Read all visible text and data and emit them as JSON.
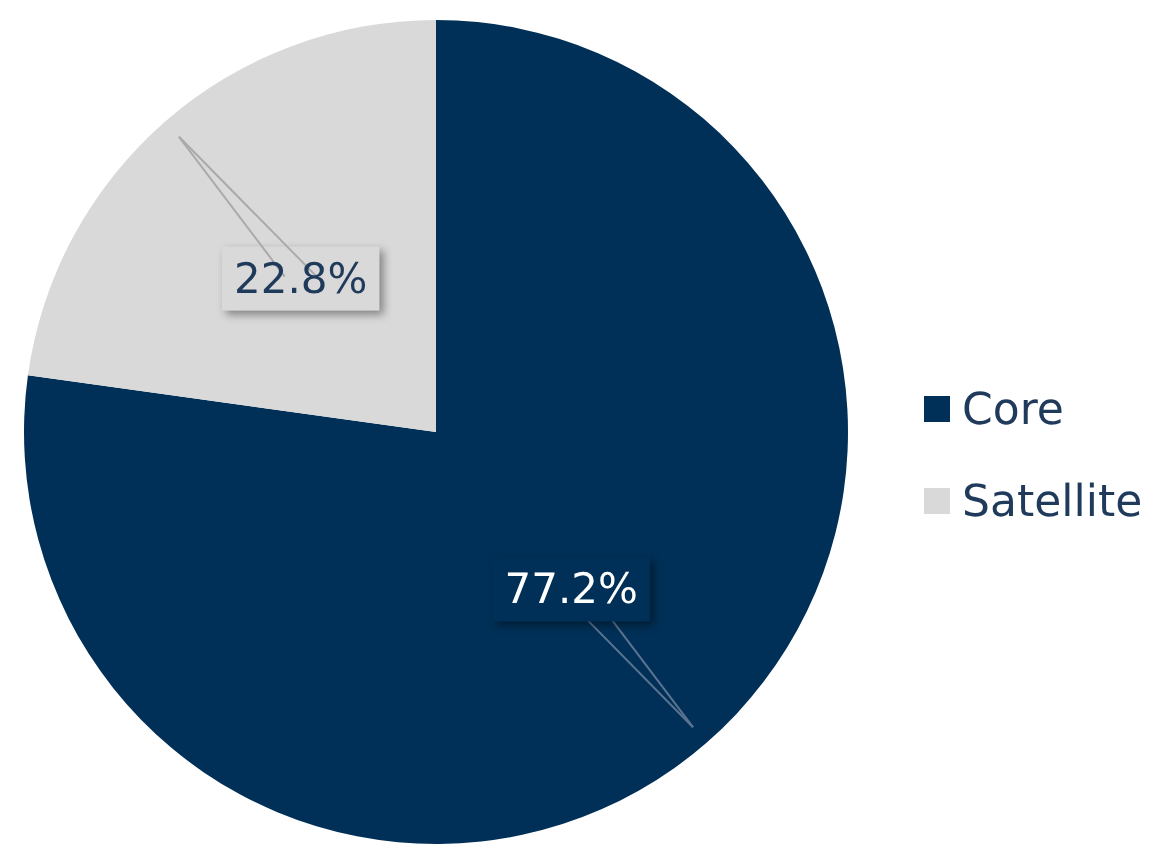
{
  "chart_data": {
    "type": "pie",
    "categories": [
      "Core",
      "Satellite"
    ],
    "values": [
      77.2,
      22.8
    ],
    "colors": [
      "#003057",
      "#d9d9d9"
    ],
    "value_labels": [
      "77.2%",
      "22.8%"
    ],
    "legend": "right"
  }
}
